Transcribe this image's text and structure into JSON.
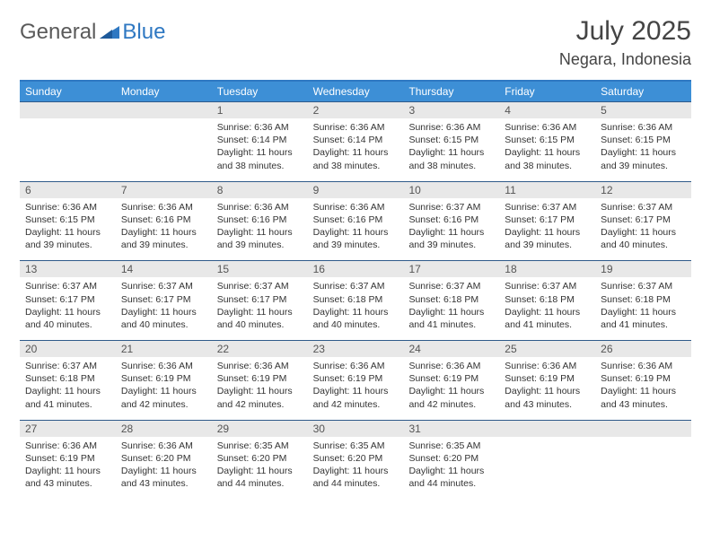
{
  "brand": {
    "general": "General",
    "blue": "Blue"
  },
  "title": "July 2025",
  "location": "Negara, Indonesia",
  "colors": {
    "header_bar": "#3d8fd6",
    "border": "#2f78c2",
    "daynum_bg": "#e8e8e8",
    "text": "#333333"
  },
  "weekdays": [
    "Sunday",
    "Monday",
    "Tuesday",
    "Wednesday",
    "Thursday",
    "Friday",
    "Saturday"
  ],
  "weeks": [
    [
      {
        "n": "",
        "sunrise": "",
        "sunset": "",
        "daylight": ""
      },
      {
        "n": "",
        "sunrise": "",
        "sunset": "",
        "daylight": ""
      },
      {
        "n": "1",
        "sunrise": "Sunrise: 6:36 AM",
        "sunset": "Sunset: 6:14 PM",
        "daylight": "Daylight: 11 hours and 38 minutes."
      },
      {
        "n": "2",
        "sunrise": "Sunrise: 6:36 AM",
        "sunset": "Sunset: 6:14 PM",
        "daylight": "Daylight: 11 hours and 38 minutes."
      },
      {
        "n": "3",
        "sunrise": "Sunrise: 6:36 AM",
        "sunset": "Sunset: 6:15 PM",
        "daylight": "Daylight: 11 hours and 38 minutes."
      },
      {
        "n": "4",
        "sunrise": "Sunrise: 6:36 AM",
        "sunset": "Sunset: 6:15 PM",
        "daylight": "Daylight: 11 hours and 38 minutes."
      },
      {
        "n": "5",
        "sunrise": "Sunrise: 6:36 AM",
        "sunset": "Sunset: 6:15 PM",
        "daylight": "Daylight: 11 hours and 39 minutes."
      }
    ],
    [
      {
        "n": "6",
        "sunrise": "Sunrise: 6:36 AM",
        "sunset": "Sunset: 6:15 PM",
        "daylight": "Daylight: 11 hours and 39 minutes."
      },
      {
        "n": "7",
        "sunrise": "Sunrise: 6:36 AM",
        "sunset": "Sunset: 6:16 PM",
        "daylight": "Daylight: 11 hours and 39 minutes."
      },
      {
        "n": "8",
        "sunrise": "Sunrise: 6:36 AM",
        "sunset": "Sunset: 6:16 PM",
        "daylight": "Daylight: 11 hours and 39 minutes."
      },
      {
        "n": "9",
        "sunrise": "Sunrise: 6:36 AM",
        "sunset": "Sunset: 6:16 PM",
        "daylight": "Daylight: 11 hours and 39 minutes."
      },
      {
        "n": "10",
        "sunrise": "Sunrise: 6:37 AM",
        "sunset": "Sunset: 6:16 PM",
        "daylight": "Daylight: 11 hours and 39 minutes."
      },
      {
        "n": "11",
        "sunrise": "Sunrise: 6:37 AM",
        "sunset": "Sunset: 6:17 PM",
        "daylight": "Daylight: 11 hours and 39 minutes."
      },
      {
        "n": "12",
        "sunrise": "Sunrise: 6:37 AM",
        "sunset": "Sunset: 6:17 PM",
        "daylight": "Daylight: 11 hours and 40 minutes."
      }
    ],
    [
      {
        "n": "13",
        "sunrise": "Sunrise: 6:37 AM",
        "sunset": "Sunset: 6:17 PM",
        "daylight": "Daylight: 11 hours and 40 minutes."
      },
      {
        "n": "14",
        "sunrise": "Sunrise: 6:37 AM",
        "sunset": "Sunset: 6:17 PM",
        "daylight": "Daylight: 11 hours and 40 minutes."
      },
      {
        "n": "15",
        "sunrise": "Sunrise: 6:37 AM",
        "sunset": "Sunset: 6:17 PM",
        "daylight": "Daylight: 11 hours and 40 minutes."
      },
      {
        "n": "16",
        "sunrise": "Sunrise: 6:37 AM",
        "sunset": "Sunset: 6:18 PM",
        "daylight": "Daylight: 11 hours and 40 minutes."
      },
      {
        "n": "17",
        "sunrise": "Sunrise: 6:37 AM",
        "sunset": "Sunset: 6:18 PM",
        "daylight": "Daylight: 11 hours and 41 minutes."
      },
      {
        "n": "18",
        "sunrise": "Sunrise: 6:37 AM",
        "sunset": "Sunset: 6:18 PM",
        "daylight": "Daylight: 11 hours and 41 minutes."
      },
      {
        "n": "19",
        "sunrise": "Sunrise: 6:37 AM",
        "sunset": "Sunset: 6:18 PM",
        "daylight": "Daylight: 11 hours and 41 minutes."
      }
    ],
    [
      {
        "n": "20",
        "sunrise": "Sunrise: 6:37 AM",
        "sunset": "Sunset: 6:18 PM",
        "daylight": "Daylight: 11 hours and 41 minutes."
      },
      {
        "n": "21",
        "sunrise": "Sunrise: 6:36 AM",
        "sunset": "Sunset: 6:19 PM",
        "daylight": "Daylight: 11 hours and 42 minutes."
      },
      {
        "n": "22",
        "sunrise": "Sunrise: 6:36 AM",
        "sunset": "Sunset: 6:19 PM",
        "daylight": "Daylight: 11 hours and 42 minutes."
      },
      {
        "n": "23",
        "sunrise": "Sunrise: 6:36 AM",
        "sunset": "Sunset: 6:19 PM",
        "daylight": "Daylight: 11 hours and 42 minutes."
      },
      {
        "n": "24",
        "sunrise": "Sunrise: 6:36 AM",
        "sunset": "Sunset: 6:19 PM",
        "daylight": "Daylight: 11 hours and 42 minutes."
      },
      {
        "n": "25",
        "sunrise": "Sunrise: 6:36 AM",
        "sunset": "Sunset: 6:19 PM",
        "daylight": "Daylight: 11 hours and 43 minutes."
      },
      {
        "n": "26",
        "sunrise": "Sunrise: 6:36 AM",
        "sunset": "Sunset: 6:19 PM",
        "daylight": "Daylight: 11 hours and 43 minutes."
      }
    ],
    [
      {
        "n": "27",
        "sunrise": "Sunrise: 6:36 AM",
        "sunset": "Sunset: 6:19 PM",
        "daylight": "Daylight: 11 hours and 43 minutes."
      },
      {
        "n": "28",
        "sunrise": "Sunrise: 6:36 AM",
        "sunset": "Sunset: 6:20 PM",
        "daylight": "Daylight: 11 hours and 43 minutes."
      },
      {
        "n": "29",
        "sunrise": "Sunrise: 6:35 AM",
        "sunset": "Sunset: 6:20 PM",
        "daylight": "Daylight: 11 hours and 44 minutes."
      },
      {
        "n": "30",
        "sunrise": "Sunrise: 6:35 AM",
        "sunset": "Sunset: 6:20 PM",
        "daylight": "Daylight: 11 hours and 44 minutes."
      },
      {
        "n": "31",
        "sunrise": "Sunrise: 6:35 AM",
        "sunset": "Sunset: 6:20 PM",
        "daylight": "Daylight: 11 hours and 44 minutes."
      },
      {
        "n": "",
        "sunrise": "",
        "sunset": "",
        "daylight": ""
      },
      {
        "n": "",
        "sunrise": "",
        "sunset": "",
        "daylight": ""
      }
    ]
  ]
}
